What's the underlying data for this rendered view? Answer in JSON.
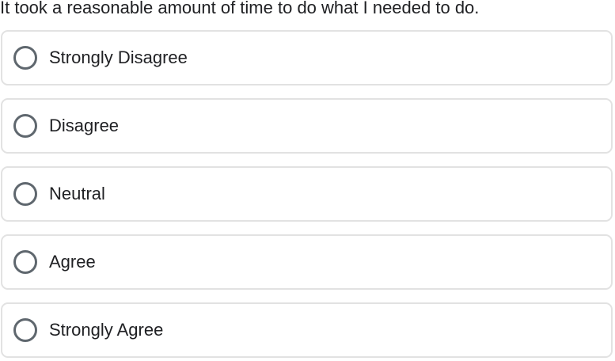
{
  "question": {
    "text": "It took a reasonable amount of time to do what I needed to do."
  },
  "options": [
    {
      "label": "Strongly Disagree",
      "selected": false
    },
    {
      "label": "Disagree",
      "selected": false
    },
    {
      "label": "Neutral",
      "selected": false
    },
    {
      "label": "Agree",
      "selected": false
    },
    {
      "label": "Strongly Agree",
      "selected": false
    }
  ],
  "icons": {
    "radio_unselected": "radio-button-unchecked"
  },
  "colors": {
    "background": "#ffffff",
    "card_border": "#e2e2e2",
    "radio_ring": "#5f676e",
    "text": "#202124"
  }
}
